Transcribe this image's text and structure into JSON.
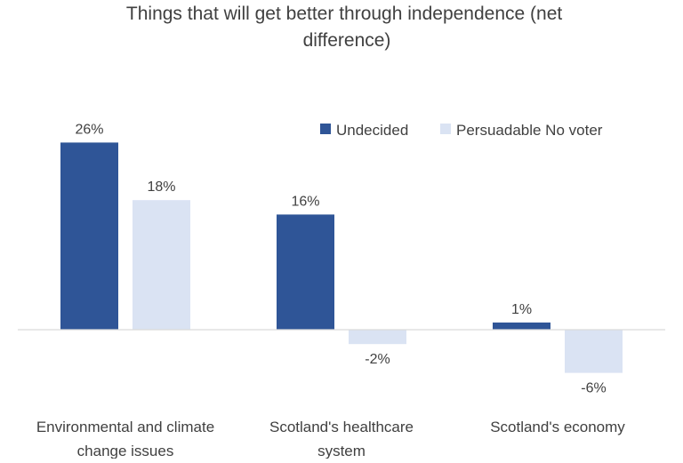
{
  "chart_data": {
    "type": "bar",
    "title": "Things that will get better through independence  (net difference)",
    "title_lines": [
      "Things that will get better through independence  (net",
      "difference)"
    ],
    "categories": [
      "Environmental and climate change issues",
      "Scotland's healthcare system",
      "Scotland's economy"
    ],
    "category_lines": [
      [
        "Environmental and climate",
        "change issues"
      ],
      [
        "Scotland's healthcare",
        "system"
      ],
      [
        "Scotland's economy"
      ]
    ],
    "series": [
      {
        "name": "Undecided",
        "color": "#2F5597",
        "values": [
          26,
          16,
          1
        ],
        "labels": [
          "26%",
          "16%",
          "1%"
        ]
      },
      {
        "name": "Persuadable No voter",
        "color": "#DAE3F3",
        "values": [
          18,
          -2,
          -6
        ],
        "labels": [
          "18%",
          "-2%",
          "-6%"
        ]
      }
    ],
    "value_format": "percent",
    "ylim": [
      -6,
      26
    ],
    "grid": false,
    "legend": "top-right"
  }
}
